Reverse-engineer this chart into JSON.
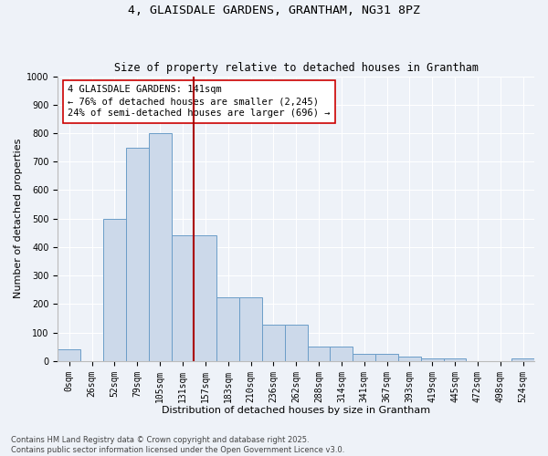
{
  "title_line1": "4, GLAISDALE GARDENS, GRANTHAM, NG31 8PZ",
  "title_line2": "Size of property relative to detached houses in Grantham",
  "xlabel": "Distribution of detached houses by size in Grantham",
  "ylabel": "Number of detached properties",
  "bar_color": "#ccd9ea",
  "bar_edge_color": "#6b9dc8",
  "categories": [
    "0sqm",
    "26sqm",
    "52sqm",
    "79sqm",
    "105sqm",
    "131sqm",
    "157sqm",
    "183sqm",
    "210sqm",
    "236sqm",
    "262sqm",
    "288sqm",
    "314sqm",
    "341sqm",
    "367sqm",
    "393sqm",
    "419sqm",
    "445sqm",
    "472sqm",
    "498sqm",
    "524sqm"
  ],
  "bar_heights": [
    40,
    0,
    500,
    750,
    800,
    440,
    440,
    225,
    225,
    128,
    128,
    50,
    50,
    25,
    25,
    15,
    10,
    10,
    0,
    0,
    10
  ],
  "vline_color": "#aa0000",
  "annotation_text": "4 GLAISDALE GARDENS: 141sqm\n← 76% of detached houses are smaller (2,245)\n24% of semi-detached houses are larger (696) →",
  "annotation_box_color": "#ffffff",
  "annotation_box_edge": "#cc0000",
  "ylim": [
    0,
    1000
  ],
  "yticks": [
    0,
    100,
    200,
    300,
    400,
    500,
    600,
    700,
    800,
    900,
    1000
  ],
  "background_color": "#eef2f8",
  "grid_color": "#ffffff",
  "footer_line1": "Contains HM Land Registry data © Crown copyright and database right 2025.",
  "footer_line2": "Contains public sector information licensed under the Open Government Licence v3.0.",
  "title_fontsize": 9.5,
  "subtitle_fontsize": 8.5,
  "axis_label_fontsize": 8,
  "tick_fontsize": 7,
  "annotation_fontsize": 7.5,
  "footer_fontsize": 6
}
